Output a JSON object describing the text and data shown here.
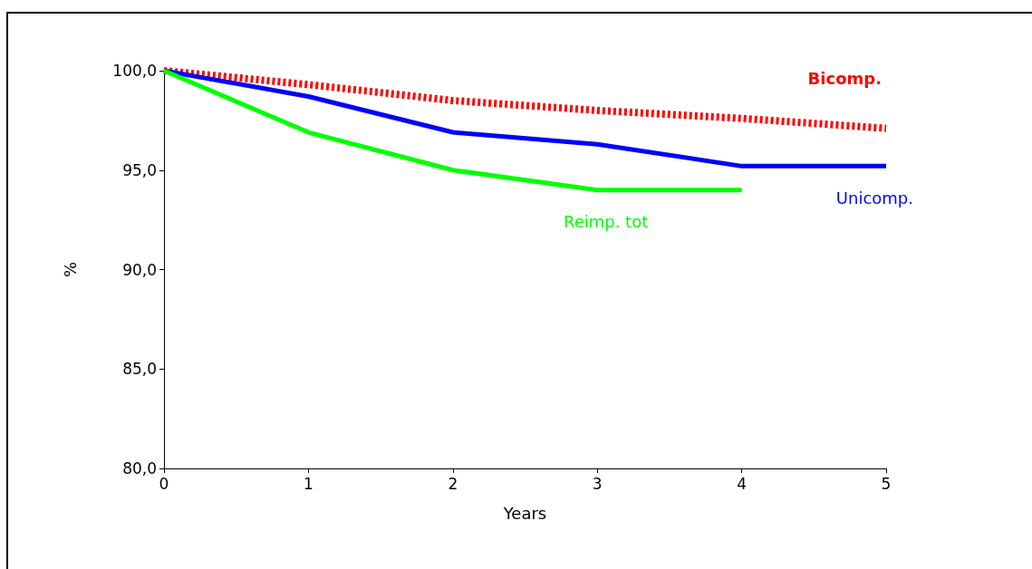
{
  "chart_data": {
    "type": "line",
    "xlabel": "Years",
    "ylabel": "%",
    "x": [
      0,
      1,
      2,
      3,
      4,
      5
    ],
    "series": [
      {
        "name": "Bicomp.",
        "color": "#ff0000",
        "line_style": "dashed",
        "values": [
          100.0,
          99.3,
          98.5,
          98.0,
          97.6,
          97.1
        ]
      },
      {
        "name": "Unicomp.",
        "color": "#0000ff",
        "line_style": "solid",
        "values": [
          100.0,
          98.7,
          96.9,
          96.3,
          95.2,
          95.2
        ]
      },
      {
        "name": "Reimp. tot",
        "color": "#00ff00",
        "line_style": "solid",
        "values": [
          100.0,
          96.9,
          95.0,
          94.0,
          94.0,
          null
        ]
      }
    ],
    "xlim": [
      0,
      5
    ],
    "xticks": [
      0,
      1,
      2,
      3,
      4,
      5
    ],
    "ylim": [
      80,
      100
    ],
    "yticks": [
      {
        "value": 80,
        "label": "80,0"
      },
      {
        "value": 85,
        "label": "85,0"
      },
      {
        "value": 90,
        "label": "90,0"
      },
      {
        "value": 95,
        "label": "95,0"
      },
      {
        "value": 100,
        "label": "100,0"
      }
    ],
    "grid": false,
    "legend": false,
    "marker": "none"
  }
}
